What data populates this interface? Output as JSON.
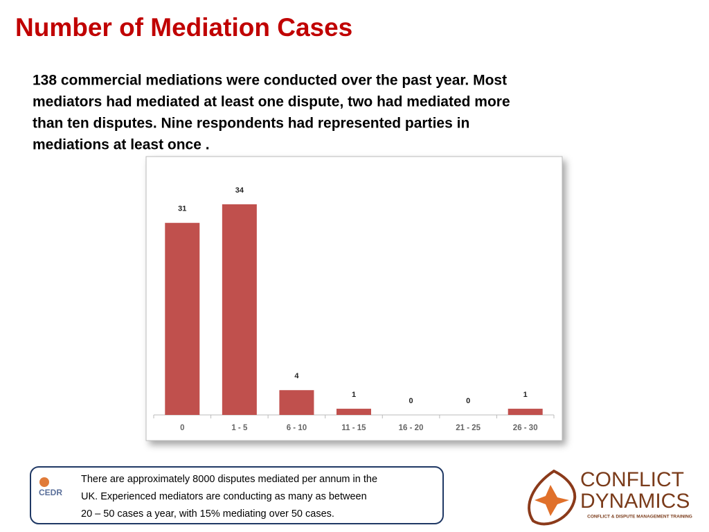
{
  "title": "Number of Mediation Cases",
  "body_lines": [
    "138 commercial mediations were conducted over the past year. Most",
    "mediators had mediated at least one dispute, two had mediated more",
    "than ten disputes. Nine respondents had represented parties  in",
    "mediations at least once ."
  ],
  "chart_data": {
    "type": "bar",
    "categories": [
      "0",
      "1 - 5",
      "6 - 10",
      "11 - 15",
      "16 - 20",
      "21 - 25",
      "26 - 30"
    ],
    "values": [
      31,
      34,
      4,
      1,
      0,
      0,
      1
    ],
    "color": "#c0504d",
    "ylim": [
      0,
      36
    ]
  },
  "note_lines": [
    "There are approximately 8000 disputes mediated per annum in the",
    "UK.  Experienced mediators are conducting as many as between",
    "20 – 50 cases a year, with 15% mediating over 50 cases."
  ],
  "note_logo": "CEDR",
  "brand": {
    "line1": "CONFLICT",
    "line2": "DYNAMICS",
    "tagline": "CONFLICT & DISPUTE MANAGEMENT TRAINING"
  }
}
